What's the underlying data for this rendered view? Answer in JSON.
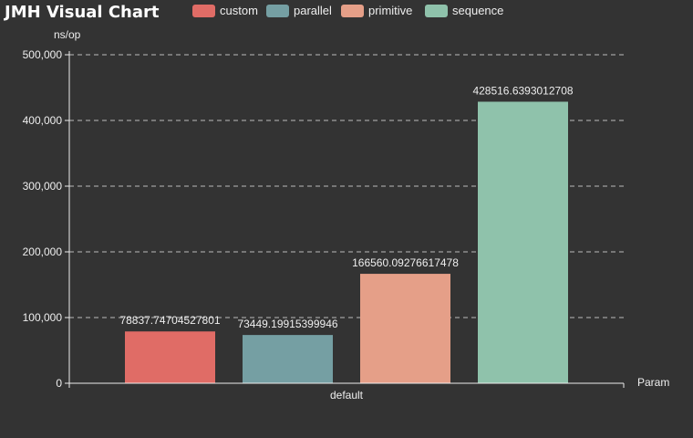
{
  "chart_data": {
    "type": "bar",
    "title": "JMH Visual Chart",
    "ylabel": "ns/op",
    "xlabel": "Param",
    "categories": [
      "default"
    ],
    "series": [
      {
        "name": "custom",
        "values": [
          78837.74704527801
        ],
        "label": "78837.74704527801"
      },
      {
        "name": "parallel",
        "values": [
          73449.19915399946
        ],
        "label": "73449.19915399946"
      },
      {
        "name": "primitive",
        "values": [
          166560.09276617478
        ],
        "label": "166560.09276617478"
      },
      {
        "name": "sequence",
        "values": [
          428516.6393012708
        ],
        "label": "428516.6393012708"
      }
    ],
    "ylim": [
      0,
      500000
    ],
    "yticks": [
      0,
      100000,
      200000,
      300000,
      400000,
      500000
    ],
    "ytick_labels": [
      "0",
      "100,000",
      "200,000",
      "300,000",
      "400,000",
      "500,000"
    ],
    "grid": true,
    "legend_position": "top",
    "colors": [
      "#e06c66",
      "#759fa3",
      "#e59f88",
      "#8fc2ab"
    ]
  }
}
